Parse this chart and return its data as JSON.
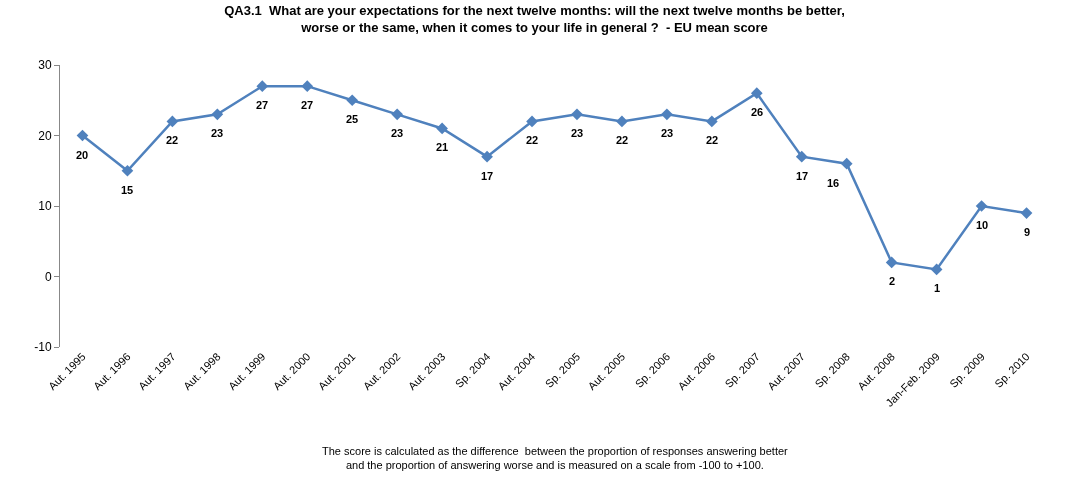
{
  "chart_data": {
    "type": "line",
    "title": "QA3.1  What are your expectations for the next twelve months: will the next twelve months be better, worse or the same, when it comes to your life in general ?  - EU mean score",
    "categories": [
      "Aut. 1995",
      "Aut. 1996",
      "Aut. 1997",
      "Aut. 1998",
      "Aut. 1999",
      "Aut. 2000",
      "Aut. 2001",
      "Aut. 2002",
      "Aut. 2003",
      "Sp. 2004",
      "Aut. 2004",
      "Sp. 2005",
      "Aut. 2005",
      "Sp. 2006",
      "Aut. 2006",
      "Sp. 2007",
      "Aut. 2007",
      "Sp. 2008",
      "Aut. 2008",
      "Jan-Feb. 2009",
      "Sp. 2009",
      "Sp. 2010"
    ],
    "series": [
      {
        "color": "#4f81bd",
        "values": [
          20,
          15,
          22,
          23,
          27,
          27,
          25,
          23,
          21,
          17,
          22,
          23,
          22,
          23,
          22,
          26,
          17,
          16,
          2,
          1,
          10,
          9
        ]
      }
    ],
    "ylim": [
      -10,
      30
    ],
    "yticks": [
      -10,
      0,
      10,
      20,
      30
    ],
    "grid": false,
    "legend": false,
    "marker": "diamond",
    "line_style": "solid",
    "data_labels": true,
    "annotations": [
      "The score is calculated as the difference  between the proportion of responses answering better and the proportion of answering worse and is measured on a scale from -100 to +100."
    ]
  }
}
